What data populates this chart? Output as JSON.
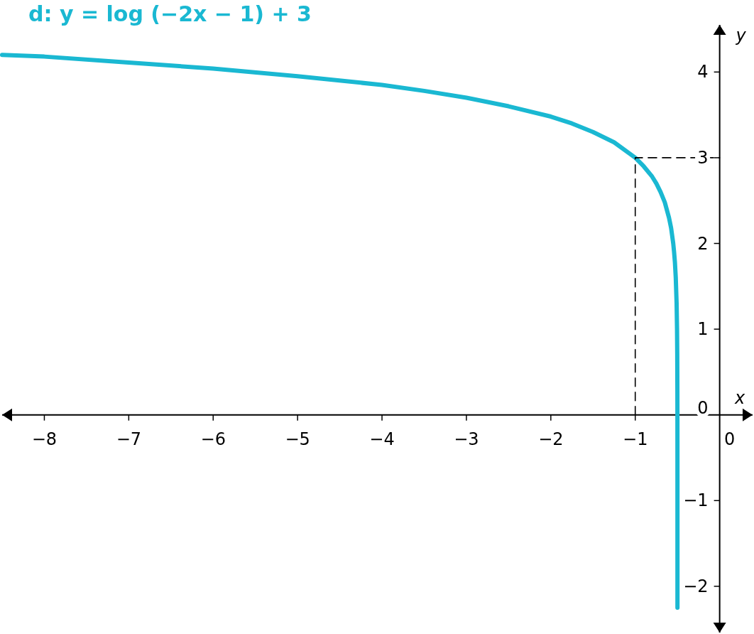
{
  "chart_data": {
    "type": "line",
    "title": "d: y = log (−2x − 1) + 3",
    "xlabel": "x",
    "ylabel": "y",
    "xlim": [
      -8.5,
      0.39
    ],
    "ylim": [
      -2.54,
      4.55
    ],
    "xticks": [
      {
        "value": -8,
        "label": "−8"
      },
      {
        "value": -7,
        "label": "−7"
      },
      {
        "value": -6,
        "label": "−6"
      },
      {
        "value": -5,
        "label": "−5"
      },
      {
        "value": -4,
        "label": "−4"
      },
      {
        "value": -3,
        "label": "−3"
      },
      {
        "value": -2,
        "label": "−2"
      },
      {
        "value": -1,
        "label": "−1"
      },
      0
    ],
    "yticks": [
      {
        "value": -2,
        "label": "−2"
      },
      {
        "value": -1,
        "label": "−1"
      },
      0,
      1,
      2,
      3,
      4
    ],
    "grid": false,
    "series": [
      {
        "color": "#1ab8d2",
        "line_style": "solid",
        "x": [
          -8.5,
          -8,
          -7,
          -6,
          -5,
          -4,
          -3.5,
          -3,
          -2.5,
          -2,
          -1.75,
          -1.5,
          -1.25,
          -1,
          -0.9,
          -0.8,
          -0.75,
          -0.7,
          -0.65,
          -0.6,
          -0.575,
          -0.55,
          -0.54,
          -0.53,
          -0.52,
          -0.51,
          -0.505,
          -0.5025,
          -0.501,
          -0.5005,
          -0.50025,
          -0.5001,
          -0.50005,
          -0.50001,
          -0.500005,
          -0.5000028
        ],
        "values": [
          4.2,
          4.18,
          4.11,
          4.04,
          3.95,
          3.85,
          3.78,
          3.7,
          3.6,
          3.48,
          3.4,
          3.3,
          3.18,
          3,
          2.9,
          2.78,
          2.7,
          2.6,
          2.48,
          2.3,
          2.18,
          2,
          1.9,
          1.78,
          1.6,
          1.3,
          1,
          0.7,
          0.3,
          0,
          -0.3,
          -0.7,
          -1,
          -1.7,
          -2,
          -2.25
        ]
      },
      {
        "color": "#000000",
        "line_style": "dashed",
        "x": [
          -1,
          -1,
          0
        ],
        "values": [
          0,
          3,
          3
        ]
      }
    ]
  }
}
